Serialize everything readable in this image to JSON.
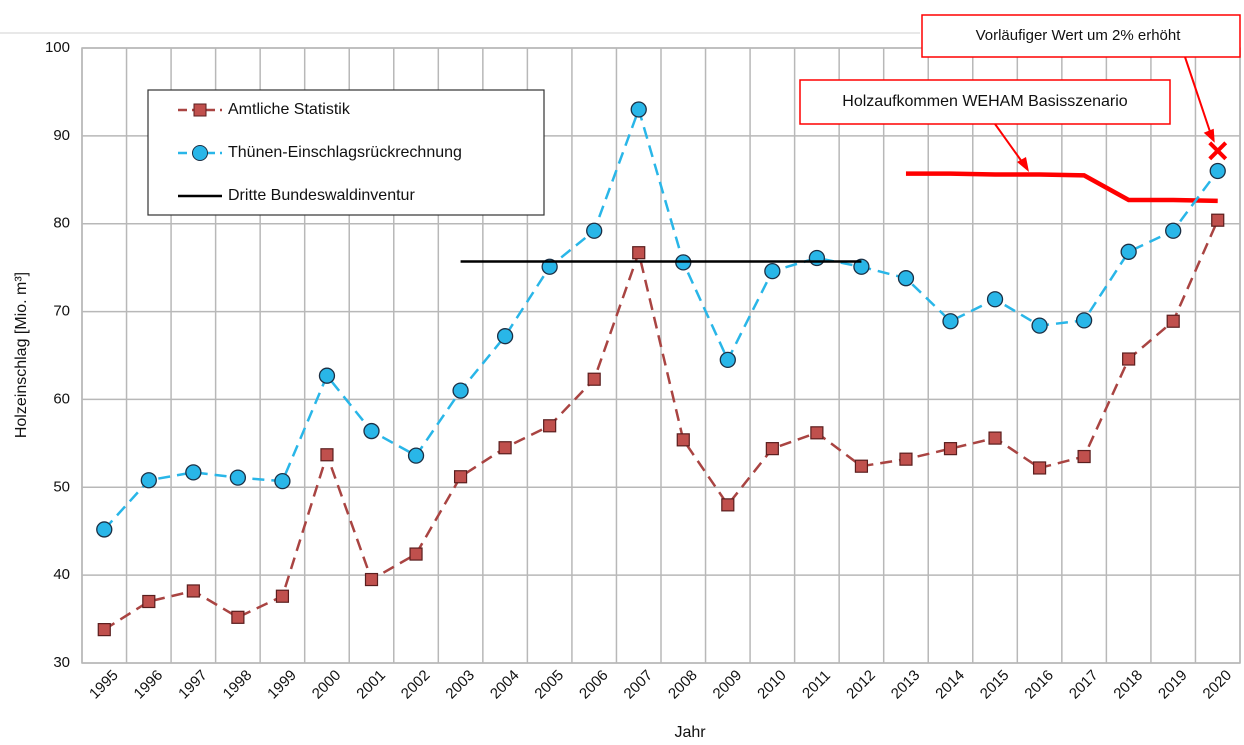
{
  "chart_data": {
    "type": "line",
    "x_label": "Jahr",
    "y_label": "Holzeinschlag  [Mio. m³]",
    "categories": [
      "1995",
      "1996",
      "1997",
      "1998",
      "1999",
      "2000",
      "2001",
      "2002",
      "2003",
      "2004",
      "2005",
      "2006",
      "2007",
      "2008",
      "2009",
      "2010",
      "2011",
      "2012",
      "2013",
      "2014",
      "2015",
      "2016",
      "2017",
      "2018",
      "2019",
      "2020"
    ],
    "ylim": [
      30,
      100
    ],
    "yticks": [
      30,
      40,
      50,
      60,
      70,
      80,
      90,
      100
    ],
    "grid": true,
    "legend": "upper left",
    "series": [
      {
        "name": "Amtliche Statistik",
        "color": "#c0504d",
        "line_color": "#a94442",
        "marker": "square",
        "line_style": "dashed",
        "values": [
          33.8,
          37.0,
          38.2,
          35.2,
          37.6,
          53.7,
          39.5,
          42.4,
          51.2,
          54.5,
          57.0,
          62.3,
          76.7,
          55.4,
          48.0,
          54.4,
          56.2,
          52.4,
          53.2,
          54.4,
          55.6,
          52.2,
          53.5,
          64.6,
          68.9,
          80.4
        ]
      },
      {
        "name": "Thünen-Einschlagsrückrechnung",
        "color": "#29b6e8",
        "line_color": "#29b6e8",
        "marker": "circle",
        "line_style": "dashed",
        "values": [
          45.2,
          50.8,
          51.7,
          51.1,
          50.7,
          62.7,
          56.4,
          53.6,
          61.0,
          67.2,
          75.1,
          79.2,
          93.0,
          75.6,
          64.5,
          74.6,
          76.1,
          75.1,
          73.8,
          68.9,
          71.4,
          68.4,
          69.0,
          76.8,
          79.2,
          86.0
        ]
      },
      {
        "name": "Dritte Bundeswaldinventur",
        "color": "#000000",
        "line_color": "#000000",
        "marker": "none",
        "line_style": "solid",
        "values": [
          null,
          null,
          null,
          null,
          null,
          null,
          null,
          null,
          75.7,
          75.7,
          75.7,
          75.7,
          75.7,
          75.7,
          75.7,
          75.7,
          75.7,
          75.7,
          null,
          null,
          null,
          null,
          null,
          null,
          null,
          null
        ]
      }
    ],
    "reference_line": {
      "name": "Holzaufkommen WEHAM Basisszenario",
      "color": "#ff0000",
      "values": [
        null,
        null,
        null,
        null,
        null,
        null,
        null,
        null,
        null,
        null,
        null,
        null,
        null,
        null,
        null,
        null,
        null,
        null,
        85.7,
        85.7,
        85.6,
        85.6,
        85.5,
        82.7,
        82.7,
        82.6
      ]
    },
    "annotations": [
      {
        "text": "Vorläufiger Wert um 2% erhöht",
        "x": "2020",
        "value": 88.3,
        "color": "#ff0000"
      }
    ]
  }
}
